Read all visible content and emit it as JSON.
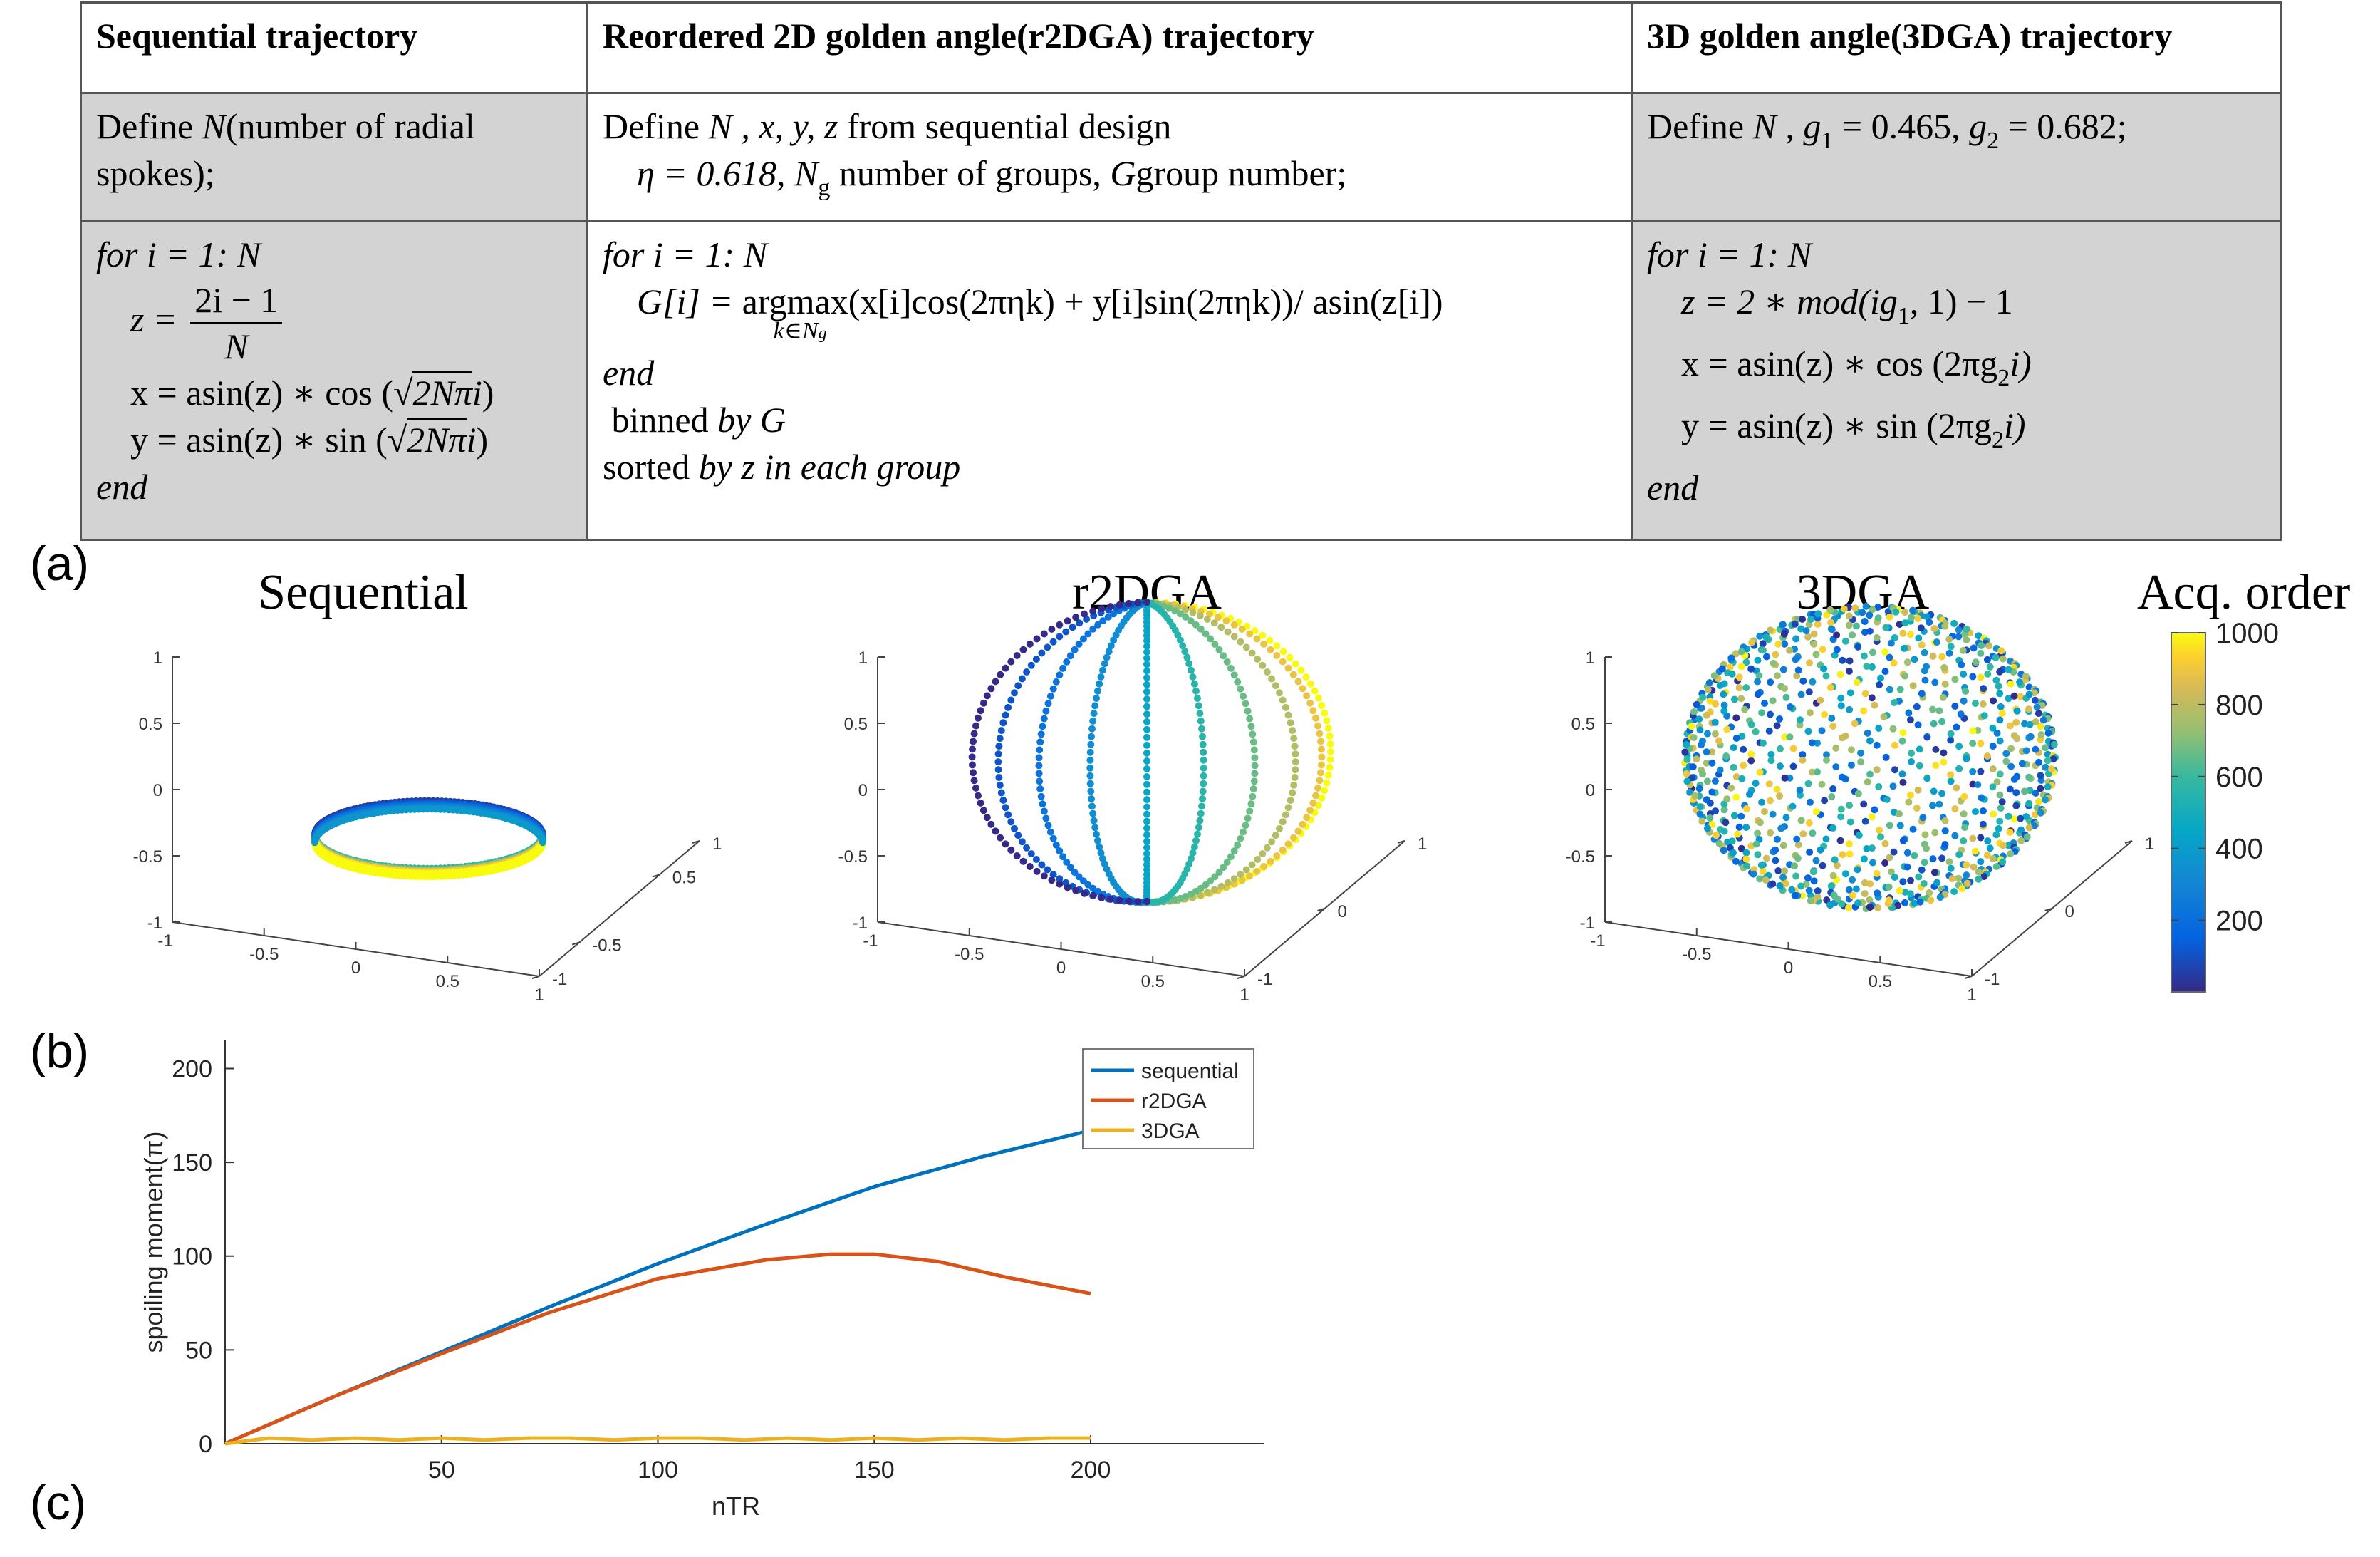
{
  "table": {
    "headers": [
      "Sequential trajectory",
      "Reordered 2D golden angle(r2DGA) trajectory",
      "3D golden angle(3DGA) trajectory"
    ],
    "col1_def": [
      "Define",
      "N",
      "(number of radial",
      "spokes);"
    ],
    "col2_def_line1": [
      "Define",
      "N , x, y, z",
      "from sequential design"
    ],
    "col2_def_line2": [
      "η = 0.618,",
      "N",
      "g",
      "number of groups,",
      "G",
      "group number;"
    ],
    "col3_def": [
      "Define",
      "N , g",
      "1",
      "= 0.465,",
      "g",
      "2",
      "= 0.682;"
    ],
    "col1_code": {
      "for": "for i = 1: N",
      "z_lhs": "z =",
      "z_num": "2i − 1",
      "z_den": "N",
      "x": [
        "x = asin(z) ∗ cos (",
        "√",
        "2Nπ",
        "i",
        ")"
      ],
      "y": [
        "y = asin(z) ∗ sin (",
        "√",
        "2Nπ",
        "i",
        ")"
      ],
      "end": "end"
    },
    "col2_code": {
      "for": "for i = 1: N",
      "g_lhs": "G[i] =",
      "argmax": "argmax",
      "argmax_sub": "k∈N",
      "argmax_sub2": "g",
      "g_rhs": "(x[i]cos(2πηk) + y[i]sin(2πηk))/ asin(z[i])",
      "end": "end",
      "binned": [
        "binned",
        "by G"
      ],
      "sorted": [
        "sorted",
        "by z in each group"
      ]
    },
    "col3_code": {
      "for": "for i = 1: N",
      "z": [
        "z = 2 ∗",
        "mod",
        "(ig",
        "1",
        ", 1) − 1"
      ],
      "x": [
        "x = asin(z) ∗ cos (2πg",
        "2",
        "i)"
      ],
      "y": [
        "y = asin(z) ∗ sin (2πg",
        "2",
        "i)"
      ],
      "end": "end"
    }
  },
  "labels": {
    "a": "(a)",
    "b": "(b)",
    "c": "(c)"
  },
  "plots3d": {
    "titles": [
      "Sequential",
      "r2DGA",
      "3DGA"
    ],
    "z_ticks": [
      "1",
      "0.5",
      "0",
      "-0.5",
      "-1"
    ],
    "x_ticks": [
      "-1",
      "-0.5",
      "0",
      "0.5",
      "1"
    ],
    "y_ticks_fine": [
      "1",
      "0.5",
      "-0.5",
      "-1"
    ],
    "y_ticks_coarse": [
      "1",
      "0",
      "-1"
    ]
  },
  "colorbar": {
    "title": "Acq. order",
    "ticks": [
      "1000",
      "800",
      "600",
      "400",
      "200"
    ],
    "colormap": "parula",
    "range": [
      1,
      1000
    ]
  },
  "chart_data": {
    "type": "line",
    "xlabel": "nTR",
    "ylabel": "spoiling moment(π)",
    "xlim": [
      0,
      240
    ],
    "ylim": [
      0,
      215
    ],
    "xticks": [
      50,
      100,
      150,
      200
    ],
    "yticks": [
      0,
      50,
      100,
      150,
      200
    ],
    "legend_position": "top-right",
    "series": [
      {
        "name": "sequential",
        "color": "#0072BD",
        "x": [
          0,
          25,
          50,
          75,
          100,
          125,
          150,
          175,
          200
        ],
        "values": [
          0,
          25,
          49,
          73,
          96,
          117,
          137,
          153,
          167
        ]
      },
      {
        "name": "r2DGA",
        "color": "#D95319",
        "x": [
          0,
          25,
          50,
          75,
          100,
          125,
          140,
          150,
          165,
          180,
          200
        ],
        "values": [
          0,
          25,
          48,
          70,
          88,
          98,
          101,
          101,
          97,
          89,
          80
        ]
      },
      {
        "name": "3DGA",
        "color": "#EDB120",
        "x": [
          0,
          10,
          20,
          30,
          40,
          50,
          60,
          70,
          80,
          90,
          100,
          110,
          120,
          130,
          140,
          150,
          160,
          170,
          180,
          190,
          200
        ],
        "values": [
          0,
          3,
          2,
          3,
          2,
          3,
          2,
          3,
          3,
          2,
          3,
          3,
          2,
          3,
          2,
          3,
          2,
          3,
          2,
          3,
          3
        ]
      }
    ]
  }
}
